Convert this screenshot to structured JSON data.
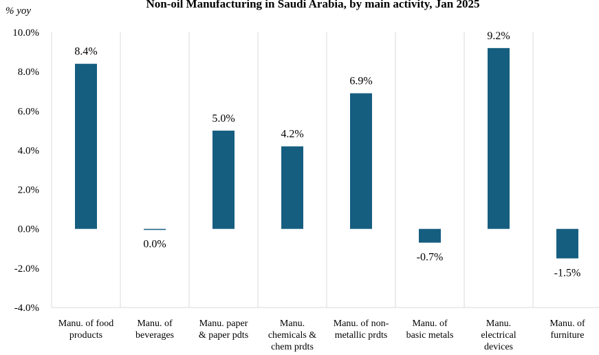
{
  "chart_data": {
    "type": "bar",
    "title": "Non-oil Manufacturing in Saudi Arabia, by main activity, Jan 2025",
    "ylabel": "% yoy",
    "xlabel": "",
    "ylim": [
      -4.0,
      10.0
    ],
    "yticks": [
      "10.0%",
      "8.0%",
      "6.0%",
      "4.0%",
      "2.0%",
      "0.0%",
      "-2.0%",
      "-4.0%"
    ],
    "ytick_values": [
      10,
      8,
      6,
      4,
      2,
      0,
      -2,
      -4
    ],
    "grid": "vertical",
    "legend": "none",
    "bar_color": "#165e80",
    "categories": [
      [
        "Manu. of food",
        "products"
      ],
      [
        "Manu. of",
        "beverages"
      ],
      [
        "Manu. paper",
        "& paper pdts"
      ],
      [
        "Manu.",
        "chemicals &",
        "chem prdts"
      ],
      [
        "Manu. of non-",
        "metallic prdts"
      ],
      [
        "Manu. of",
        "basic metals"
      ],
      [
        "Manu.",
        "electrical",
        "devices"
      ],
      [
        "Manu. of",
        "furniture"
      ]
    ],
    "values": [
      8.4,
      -0.03,
      5.0,
      4.2,
      6.9,
      -0.7,
      9.2,
      -1.5
    ],
    "data_labels": [
      "8.4%",
      "0.0%",
      "5.0%",
      "4.2%",
      "6.9%",
      "-0.7%",
      "9.2%",
      "-1.5%"
    ]
  }
}
